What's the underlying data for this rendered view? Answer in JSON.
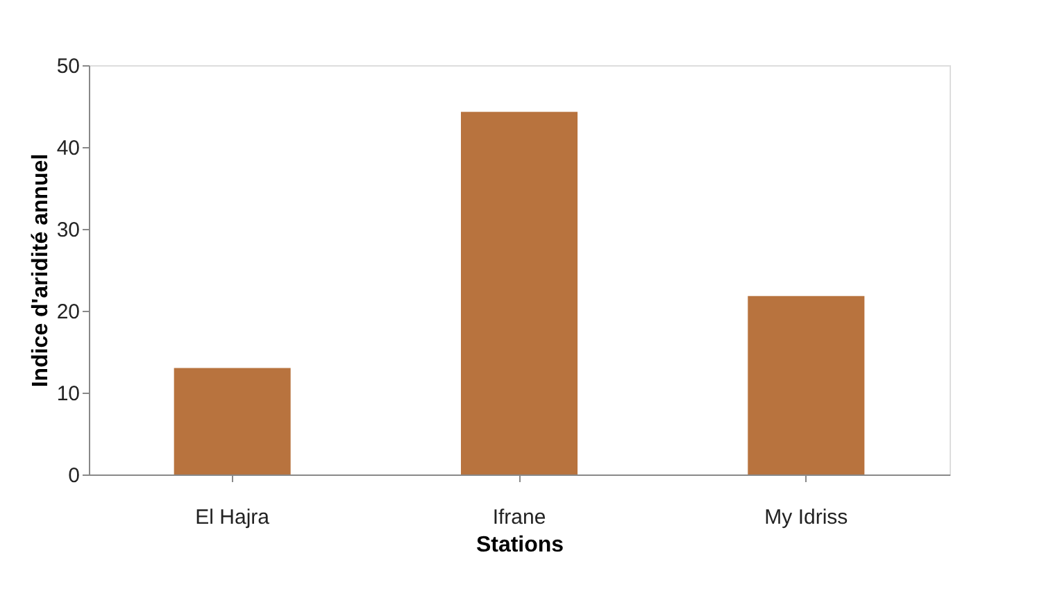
{
  "chart_data": {
    "type": "bar",
    "xlabel": "Stations",
    "ylabel": "Indice d'aridité annuel",
    "categories": [
      "El Hajra",
      "Ifrane",
      "My Idriss"
    ],
    "values": [
      13,
      44.3,
      21.8
    ],
    "color": "#b8733e",
    "ylim": [
      0,
      50
    ],
    "yticks": [
      0,
      10,
      20,
      30,
      40,
      50
    ],
    "grid": false
  }
}
